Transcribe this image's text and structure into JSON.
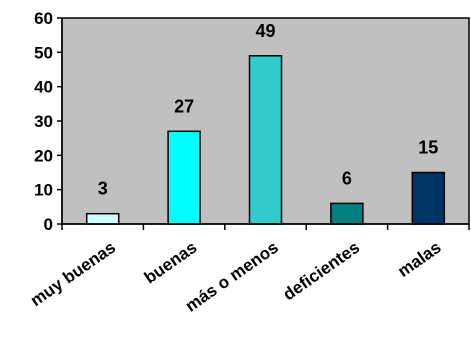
{
  "chart_data": {
    "type": "bar",
    "title": "",
    "xlabel": "",
    "ylabel": "",
    "categories": [
      "muy buenas",
      "buenas",
      "más o menos",
      "deficientes",
      "malas"
    ],
    "values": [
      3,
      27,
      49,
      6,
      15
    ],
    "data_labels": [
      "3",
      "27",
      "49",
      "6",
      "15"
    ],
    "ylim": [
      0,
      60
    ],
    "yticks": [
      0,
      10,
      20,
      30,
      40,
      50,
      60
    ],
    "ytick_labels": [
      "0",
      "10",
      "20",
      "30",
      "40",
      "50",
      "60"
    ],
    "grid": false,
    "legend": "none",
    "plot_background": "#c0c0c0",
    "bar_colors": [
      "#ccffff",
      "#00ffff",
      "#33cccc",
      "#008080",
      "#003366"
    ]
  }
}
